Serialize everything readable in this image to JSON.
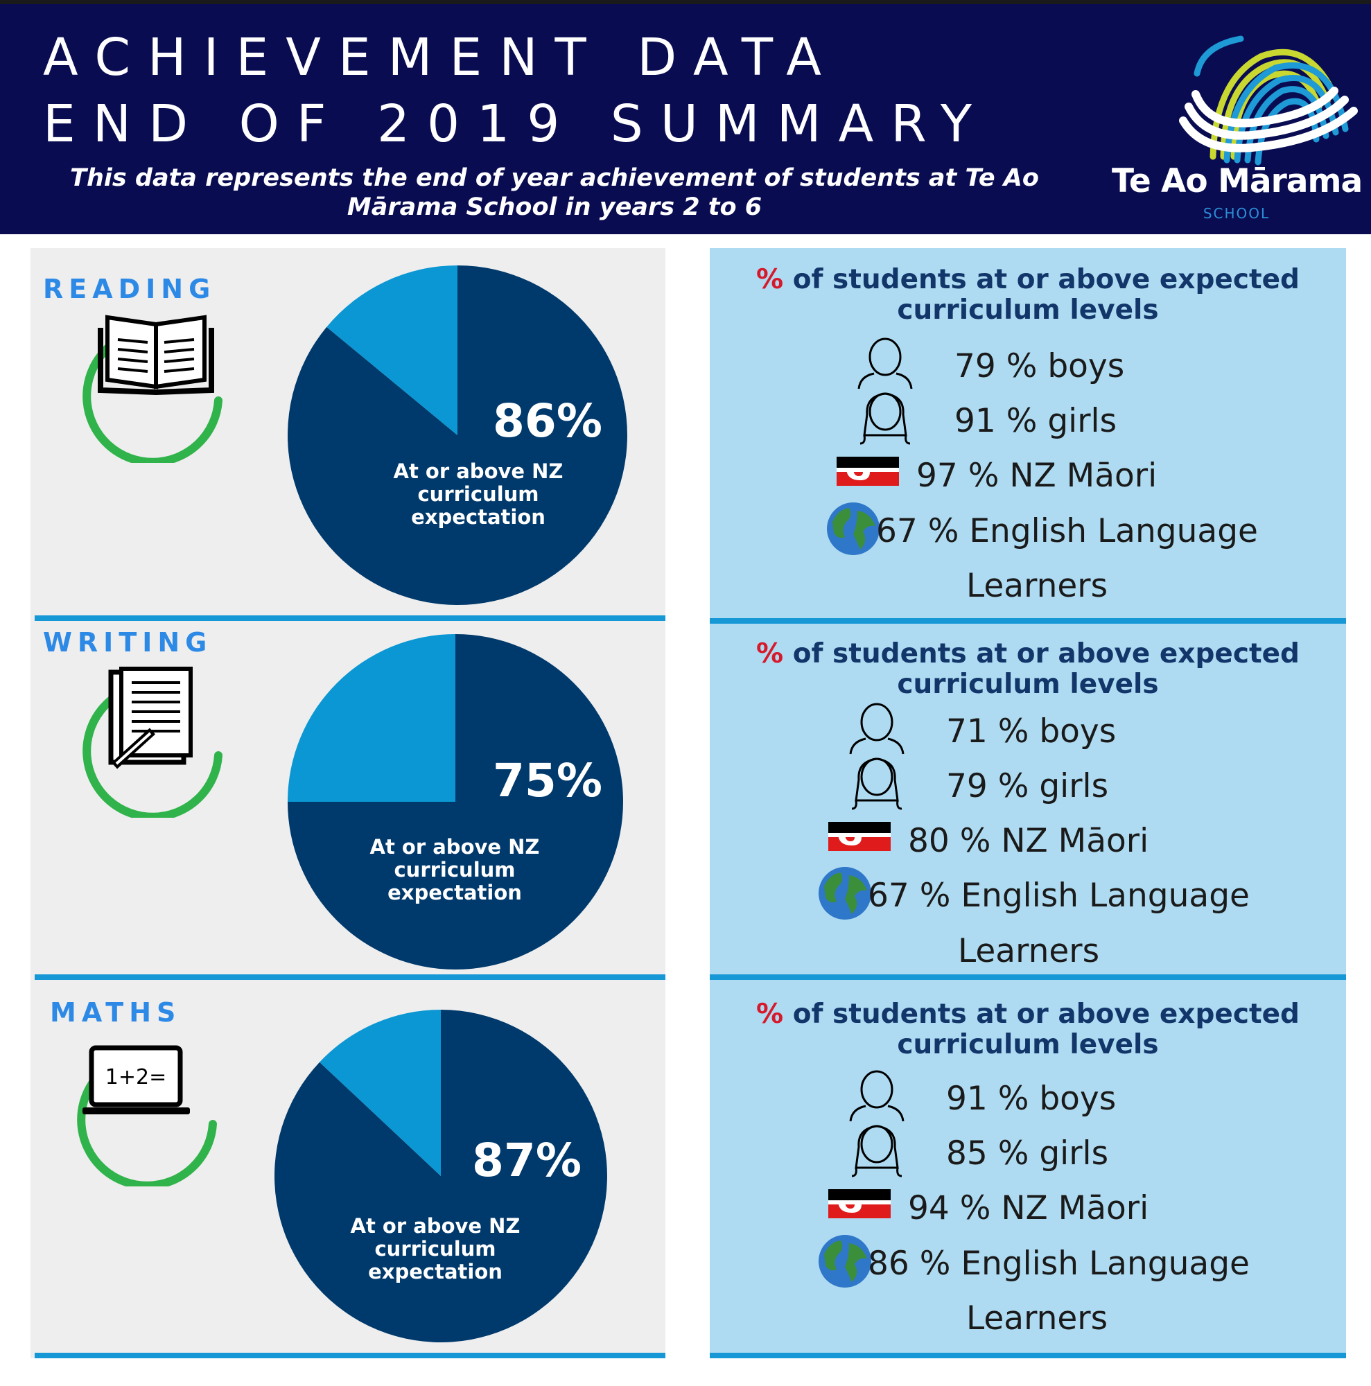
{
  "header": {
    "title_line1": "ACHIEVEMENT DATA",
    "title_line2": "END OF 2019 SUMMARY",
    "subtitle": "This data represents the end of year achievement of students at Te Ao Mārama School in years 2 to 6",
    "logo_name": "Te Ao Mārama",
    "logo_sub": "SCHOOL"
  },
  "colors": {
    "header_bg": "#0a0c52",
    "pie_main": "#00396b",
    "pie_slice": "#0b97d3",
    "subject_label": "#2d89e6",
    "ring_green": "#2fb34a",
    "right_panel_bg": "#aedbf1",
    "divider": "#1798d6",
    "percent_red": "#d7192c"
  },
  "chart_data": [
    {
      "type": "pie",
      "subject": "READING",
      "icon": "open-book-icon",
      "values": [
        86,
        14
      ],
      "value_label": "86%",
      "slice_label": "At or above NZ curriculum expectation",
      "heading_symbol": "%",
      "heading_text": "of students at or above expected curriculum levels",
      "breakdown": [
        {
          "icon": "boy-icon",
          "value": 79,
          "text": "79 % boys"
        },
        {
          "icon": "girl-icon",
          "value": 91,
          "text": "91 % girls"
        },
        {
          "icon": "tino-rangatiratanga-flag-icon",
          "value": 97,
          "text": "97 % NZ Māori"
        },
        {
          "icon": "globe-icon",
          "value": 67,
          "text": "67 % English Language",
          "text2": "Learners"
        }
      ]
    },
    {
      "type": "pie",
      "subject": "WRITING",
      "icon": "writing-pad-icon",
      "values": [
        75,
        25
      ],
      "value_label": "75%",
      "slice_label": "At or above NZ curriculum expectation",
      "heading_symbol": "%",
      "heading_text": "of students at or above expected curriculum levels",
      "breakdown": [
        {
          "icon": "boy-icon",
          "value": 71,
          "text": "71 % boys"
        },
        {
          "icon": "girl-icon",
          "value": 79,
          "text": "79 % girls"
        },
        {
          "icon": "tino-rangatiratanga-flag-icon",
          "value": 80,
          "text": "80 % NZ Māori"
        },
        {
          "icon": "globe-icon",
          "value": 67,
          "text": "67 % English Language",
          "text2": "Learners"
        }
      ]
    },
    {
      "type": "pie",
      "subject": "MATHS",
      "icon": "laptop-icon",
      "icon_text": "1+2=",
      "values": [
        87,
        13
      ],
      "value_label": "87%",
      "slice_label": "At or above NZ curriculum expectation",
      "heading_symbol": "%",
      "heading_text": "of students at or above expected curriculum levels",
      "breakdown": [
        {
          "icon": "boy-icon",
          "value": 91,
          "text": "91 % boys"
        },
        {
          "icon": "girl-icon",
          "value": 85,
          "text": "85 % girls"
        },
        {
          "icon": "tino-rangatiratanga-flag-icon",
          "value": 94,
          "text": "94 % NZ Māori"
        },
        {
          "icon": "globe-icon",
          "value": 86,
          "text": "86 % English Language",
          "text2": "Learners"
        }
      ]
    }
  ]
}
